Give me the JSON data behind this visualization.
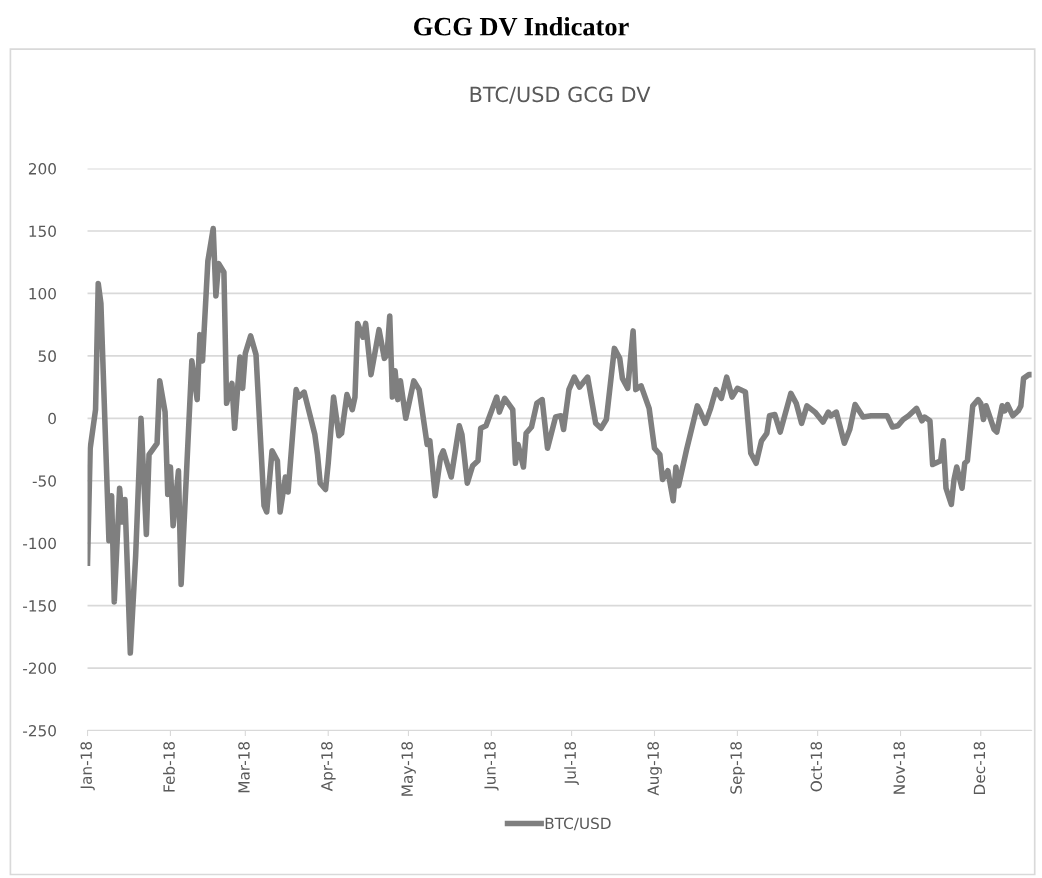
{
  "chart_data": {
    "type": "line",
    "title": "GCG DV Indicator",
    "subtitle": "BTC/USD GCG DV",
    "x": [
      "2018-01-01",
      "2018-01-02",
      "2018-01-04",
      "2018-01-05",
      "2018-01-06",
      "2018-01-09",
      "2018-01-10",
      "2018-01-11",
      "2018-01-13",
      "2018-01-14",
      "2018-01-15",
      "2018-01-17",
      "2018-01-19",
      "2018-01-21",
      "2018-01-23",
      "2018-01-24",
      "2018-01-27",
      "2018-01-28",
      "2018-01-30",
      "2018-01-31",
      "2018-02-01",
      "2018-02-02",
      "2018-02-04",
      "2018-02-05",
      "2018-02-07",
      "2018-02-09",
      "2018-02-11",
      "2018-02-12",
      "2018-02-13",
      "2018-02-15",
      "2018-02-17",
      "2018-02-18",
      "2018-02-19",
      "2018-02-21",
      "2018-02-22",
      "2018-02-24",
      "2018-02-25",
      "2018-02-27",
      "2018-02-28",
      "2018-03-01",
      "2018-03-03",
      "2018-03-05",
      "2018-03-08",
      "2018-03-09",
      "2018-03-11",
      "2018-03-13",
      "2018-03-14",
      "2018-03-16",
      "2018-03-17",
      "2018-03-20",
      "2018-03-21",
      "2018-03-23",
      "2018-03-27",
      "2018-03-28",
      "2018-03-29",
      "2018-03-31",
      "2018-04-01",
      "2018-04-03",
      "2018-04-05",
      "2018-04-06",
      "2018-04-08",
      "2018-04-10",
      "2018-04-11",
      "2018-04-12",
      "2018-04-14",
      "2018-04-15",
      "2018-04-17",
      "2018-04-20",
      "2018-04-22",
      "2018-04-23",
      "2018-04-24",
      "2018-04-25",
      "2018-04-26",
      "2018-04-27",
      "2018-04-28",
      "2018-04-30",
      "2018-05-03",
      "2018-05-05",
      "2018-05-08",
      "2018-05-09",
      "2018-05-11",
      "2018-05-13",
      "2018-05-14",
      "2018-05-17",
      "2018-05-20",
      "2018-05-21",
      "2018-05-23",
      "2018-05-25",
      "2018-05-27",
      "2018-05-28",
      "2018-05-30",
      "2018-06-03",
      "2018-06-04",
      "2018-06-06",
      "2018-06-09",
      "2018-06-10",
      "2018-06-11",
      "2018-06-13",
      "2018-06-14",
      "2018-06-16",
      "2018-06-18",
      "2018-06-20",
      "2018-06-22",
      "2018-06-25",
      "2018-06-27",
      "2018-06-28",
      "2018-06-30",
      "2018-07-02",
      "2018-07-04",
      "2018-07-07",
      "2018-07-10",
      "2018-07-12",
      "2018-07-14",
      "2018-07-17",
      "2018-07-19",
      "2018-07-20",
      "2018-07-22",
      "2018-07-24",
      "2018-07-25",
      "2018-07-27",
      "2018-07-30",
      "2018-08-01",
      "2018-08-03",
      "2018-08-04",
      "2018-08-06",
      "2018-08-08",
      "2018-08-09",
      "2018-08-10",
      "2018-08-13",
      "2018-08-17",
      "2018-08-18",
      "2018-08-20",
      "2018-08-22",
      "2018-08-24",
      "2018-08-26",
      "2018-08-28",
      "2018-08-30",
      "2018-09-01",
      "2018-09-04",
      "2018-09-06",
      "2018-09-08",
      "2018-09-10",
      "2018-09-12",
      "2018-09-13",
      "2018-09-15",
      "2018-09-17",
      "2018-09-21",
      "2018-09-23",
      "2018-09-25",
      "2018-09-27",
      "2018-09-30",
      "2018-10-03",
      "2018-10-05",
      "2018-10-06",
      "2018-10-08",
      "2018-10-11",
      "2018-10-13",
      "2018-10-15",
      "2018-10-18",
      "2018-10-21",
      "2018-10-27",
      "2018-10-29",
      "2018-10-31",
      "2018-11-02",
      "2018-11-04",
      "2018-11-07",
      "2018-11-09",
      "2018-11-10",
      "2018-11-12",
      "2018-11-13",
      "2018-11-16",
      "2018-11-17",
      "2018-11-18",
      "2018-11-20",
      "2018-11-21",
      "2018-11-22",
      "2018-11-24",
      "2018-11-25",
      "2018-11-26",
      "2018-11-28",
      "2018-11-30",
      "2018-12-01",
      "2018-12-02",
      "2018-12-03",
      "2018-12-06",
      "2018-12-07",
      "2018-12-09",
      "2018-12-10",
      "2018-12-11",
      "2018-12-13",
      "2018-12-15",
      "2018-12-16",
      "2018-12-17",
      "2018-12-19",
      "2018-12-20"
    ],
    "series": [
      {
        "name": "BTC/USD",
        "color": "#7f7f7f",
        "values": [
          -116,
          -24,
          7,
          108,
          92,
          -98,
          -62,
          -147,
          -56,
          -83,
          -65,
          -188,
          -110,
          0,
          -93,
          -29,
          -20,
          30,
          5,
          -61,
          -39,
          -86,
          -42,
          -133,
          -44,
          46,
          15,
          67,
          46,
          126,
          152,
          98,
          124,
          117,
          12,
          28,
          -8,
          49,
          24,
          52,
          66,
          51,
          -70,
          -75,
          -26,
          -34,
          -75,
          -47,
          -59,
          23,
          17,
          21,
          -13,
          -29,
          -52,
          -57,
          -36,
          17,
          -14,
          -12,
          19,
          7,
          17,
          76,
          65,
          76,
          35,
          71,
          48,
          51,
          82,
          17,
          38,
          15,
          30,
          0,
          30,
          23,
          -21,
          -18,
          -62,
          -31,
          -26,
          -47,
          -6,
          -13,
          -52,
          -38,
          -34,
          -8,
          -6,
          17,
          5,
          16,
          7,
          -36,
          -21,
          -39,
          -12,
          -7,
          12,
          15,
          -24,
          1,
          2,
          -9,
          23,
          33,
          25,
          33,
          -4,
          -8,
          -1,
          56,
          48,
          32,
          24,
          70,
          23,
          26,
          8,
          -24,
          -29,
          -49,
          -42,
          -66,
          -39,
          -54,
          -25,
          10,
          6,
          -4,
          8,
          23,
          16,
          33,
          17,
          24,
          21,
          -28,
          -36,
          -18,
          -12,
          2,
          3,
          -11,
          20,
          12,
          -4,
          10,
          5,
          -3,
          5,
          2,
          5,
          -20,
          -9,
          11,
          1,
          2,
          2,
          -7,
          -6,
          -1,
          2,
          8,
          -2,
          1,
          -2,
          -37,
          -34,
          -18,
          -56,
          -69,
          -49,
          -39,
          -56,
          -36,
          -34,
          10,
          15,
          12,
          -1,
          10,
          -9,
          -11,
          10,
          6,
          11,
          2,
          6,
          10,
          32,
          35,
          35
        ]
      }
    ],
    "xlim": [
      "2018-01-01",
      "2018-12-20"
    ],
    "xticks": [
      {
        "value": "2018-01-01",
        "label": "Jan-18"
      },
      {
        "value": "2018-02-01",
        "label": "Feb-18"
      },
      {
        "value": "2018-03-01",
        "label": "Mar-18"
      },
      {
        "value": "2018-04-01",
        "label": "Apr-18"
      },
      {
        "value": "2018-05-01",
        "label": "May-18"
      },
      {
        "value": "2018-06-01",
        "label": "Jun-18"
      },
      {
        "value": "2018-07-01",
        "label": "Jul-18"
      },
      {
        "value": "2018-08-01",
        "label": "Aug-18"
      },
      {
        "value": "2018-09-01",
        "label": "Sep-18"
      },
      {
        "value": "2018-10-01",
        "label": "Oct-18"
      },
      {
        "value": "2018-11-01",
        "label": "Nov-18"
      },
      {
        "value": "2018-12-01",
        "label": "Dec-18"
      }
    ],
    "ylim": [
      -250,
      200
    ],
    "yticks": [
      -250,
      -200,
      -150,
      -100,
      -50,
      0,
      50,
      100,
      150,
      200
    ],
    "grid": "y",
    "legend": "bottom",
    "marker": "none",
    "line_style": "solid"
  }
}
